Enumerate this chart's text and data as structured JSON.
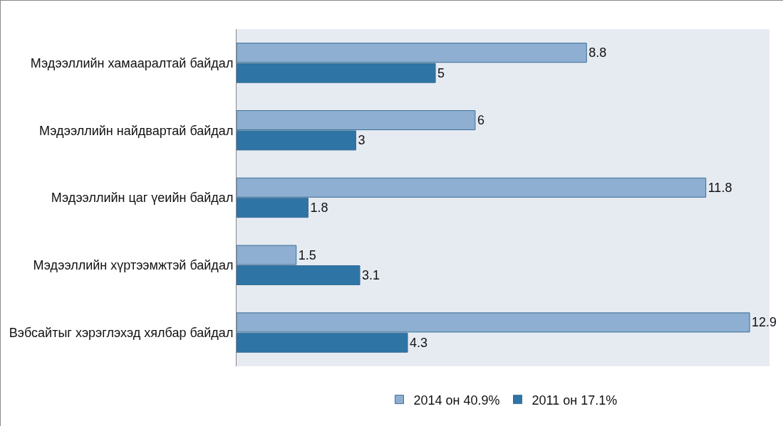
{
  "chart_data": {
    "type": "bar",
    "orientation": "horizontal",
    "categories": [
      "Мэдээллийн хамааралтай байдал",
      "Мэдээллийн найдвартай байдал",
      "Мэдээллийн цаг үеийн байдал",
      "Мэдээллийн хүртээмжтэй байдал",
      "Вэбсайтыг хэрэглэхэд хялбар байдал"
    ],
    "series": [
      {
        "name": "2014 он 40.9%",
        "color": "#8eafd1",
        "values": [
          8.8,
          6,
          11.8,
          1.5,
          12.9
        ]
      },
      {
        "name": "2011 он 17.1%",
        "color": "#2e75a6",
        "values": [
          5,
          3,
          1.8,
          3.1,
          4.3
        ]
      }
    ],
    "xlim": [
      0,
      13.4
    ],
    "tick_labels": "y",
    "data_labels": true,
    "grid": false,
    "legend": "bottom"
  }
}
